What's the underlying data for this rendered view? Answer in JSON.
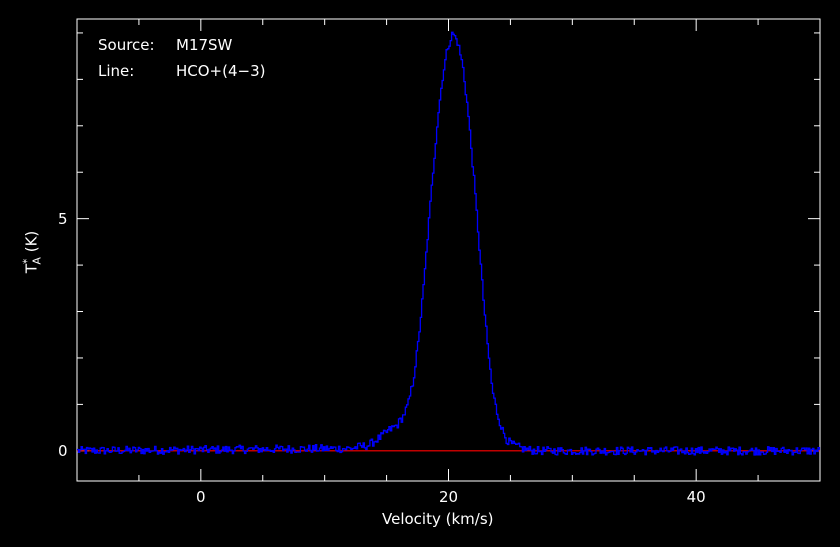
{
  "chart_data": {
    "type": "line",
    "xlabel": "Velocity (km/s)",
    "ylabel": "T",
    "ylabel_sup": "*",
    "ylabel_sub": "A",
    "ylabel_unit": "(K)",
    "xlim": [
      -10,
      50
    ],
    "ylim": [
      -0.65,
      9.3
    ],
    "x_ticks": [
      0,
      20,
      40
    ],
    "y_ticks": [
      0,
      5
    ],
    "grid": false,
    "annotations": [
      {
        "key": "Source:",
        "value": "M17SW"
      },
      {
        "key": "Line:",
        "value": "HCO+(4−3)"
      }
    ],
    "series": [
      {
        "x": [
          -10,
          12.0,
          13.5,
          14.5,
          15.2,
          15.8,
          16.3,
          16.7,
          17.1,
          17.5,
          17.9,
          18.3,
          18.7,
          19.1,
          19.5,
          19.9,
          20.3,
          20.7,
          21.1,
          21.5,
          21.9,
          22.3,
          22.7,
          23.1,
          23.5,
          23.9,
          24.3,
          24.7,
          25.2,
          26.0,
          27.0,
          50
        ],
        "y": [
          0.0,
          0.05,
          0.12,
          0.3,
          0.45,
          0.55,
          0.75,
          1.0,
          1.5,
          2.3,
          3.4,
          4.7,
          6.0,
          7.2,
          8.1,
          8.7,
          9.0,
          8.8,
          8.3,
          7.4,
          6.2,
          4.9,
          3.5,
          2.3,
          1.3,
          0.8,
          0.45,
          0.22,
          0.12,
          0.04,
          0.0,
          0.0
        ],
        "color": "#0000ff"
      }
    ],
    "baseline": {
      "y": 0,
      "color": "#ff0000"
    }
  }
}
